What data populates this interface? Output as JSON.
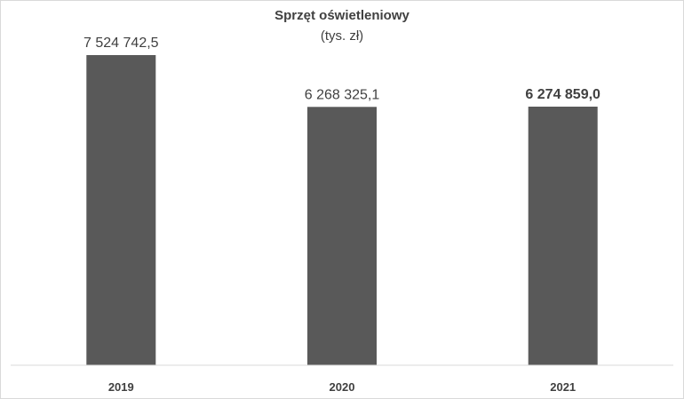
{
  "chart_data": {
    "type": "bar",
    "title": "Sprzęt oświetleniowy",
    "subtitle": "(tys. zł)",
    "categories": [
      "2019",
      "2020",
      "2021"
    ],
    "values": [
      7524742.5,
      6268325.1,
      6274859.0
    ],
    "data_labels": [
      "7 524 742,5",
      "6 268 325,1",
      "6 274 859,0"
    ],
    "bold_labels": [
      false,
      false,
      true
    ],
    "ylim": [
      0,
      8000000
    ],
    "grid": false,
    "legend": "none",
    "bar_color": "#595959",
    "axis_color": "#d9d9d9",
    "text_color": "#404040"
  }
}
